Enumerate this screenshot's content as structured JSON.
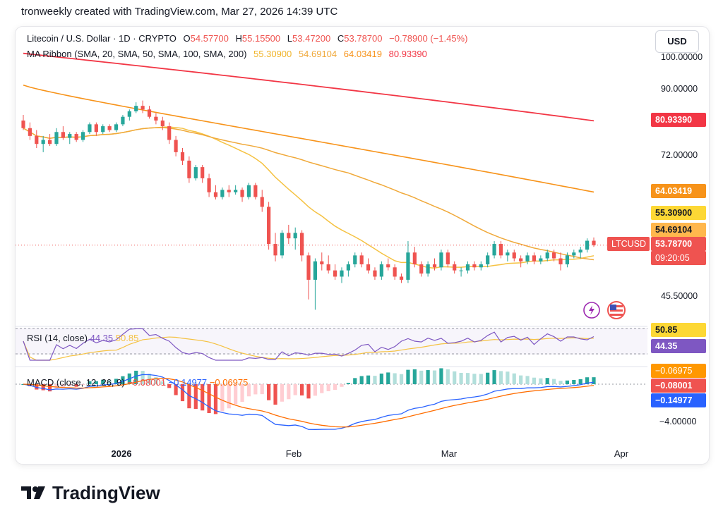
{
  "header": {
    "caption": "tronweekly created with TradingView.com, Mar 27, 2026 14:39 UTC"
  },
  "legend": {
    "symbol": "Litecoin / U.S. Dollar · 1D · CRYPTO",
    "open_label": "O",
    "open": "54.57700",
    "high_label": "H",
    "high": "55.15500",
    "low_label": "L",
    "low": "53.47200",
    "close_label": "C",
    "close": "53.78700",
    "change": "−0.78900 (−1.45%)",
    "ma_title": "MA Ribbon (SMA, 20, SMA, 50, SMA, 100, SMA, 200)",
    "ma20": "55.30900",
    "ma50": "54.69104",
    "ma100": "64.03419",
    "ma200": "80.93390"
  },
  "currency_button": "USD",
  "price_axis": {
    "ticks": [
      "100.00000",
      "90.00000",
      "72.00000",
      "45.50000"
    ]
  },
  "price_labels": {
    "ma200": "80.93390",
    "ma100": "64.03419",
    "ma20": "55.30900",
    "ma50": "54.69104",
    "symbol_tag": "LTCUSD",
    "last": "53.78700",
    "countdown": "09:20:05"
  },
  "rsi": {
    "title": "RSI (14, close)",
    "rsi_value": "44.35",
    "ma_value": "50.85",
    "label_ma": "50.85",
    "label_rsi": "44.35"
  },
  "macd": {
    "title": "MACD (close, 12, 26, 9)",
    "hist": "−0.08001",
    "macd": "−0.14977",
    "signal": "−0.06975",
    "label_signal": "−0.06975",
    "label_hist": "−0.08001",
    "label_macd": "−0.14977",
    "tick": "−4.00000"
  },
  "x_axis": {
    "ticks": [
      "2026",
      "Feb",
      "Mar",
      "Apr"
    ]
  },
  "footer": {
    "brand": "TradingView"
  },
  "colors": {
    "up": "#26a69a",
    "down": "#ef5350",
    "ma20": "#f5c242",
    "ma50": "#f0a93a",
    "ma100": "#f7931a",
    "ma200": "#f23645",
    "rsi": "#7e57c2",
    "macd": "#2962ff",
    "signal": "#ff6d00"
  },
  "chart_data": {
    "type": "candlestick",
    "title": "Litecoin / U.S. Dollar · 1D · CRYPTO",
    "x_range": [
      "2025-12-01",
      "2026-03-27"
    ],
    "y_axis": "log",
    "candles_ohlc": [
      [
        81,
        82.5,
        78.5,
        79
      ],
      [
        79,
        80.5,
        76,
        77
      ],
      [
        77,
        78.5,
        74,
        75
      ],
      [
        75,
        77,
        73,
        76
      ],
      [
        76,
        77.5,
        74.5,
        75
      ],
      [
        75,
        79,
        74.5,
        78
      ],
      [
        78,
        79.5,
        76,
        76.5
      ],
      [
        76.5,
        78,
        75,
        77.5
      ],
      [
        77.5,
        78,
        75.5,
        76
      ],
      [
        76,
        78.5,
        75.5,
        78
      ],
      [
        78,
        80.5,
        77.5,
        80
      ],
      [
        80,
        80.5,
        77,
        78
      ],
      [
        78,
        80,
        77.5,
        79.5
      ],
      [
        79.5,
        80,
        78,
        78.5
      ],
      [
        78.5,
        80.5,
        78,
        80
      ],
      [
        80,
        82.5,
        79.5,
        82
      ],
      [
        82,
        84,
        81,
        83.5
      ],
      [
        83.5,
        86,
        83,
        85
      ],
      [
        85,
        86.5,
        83,
        84
      ],
      [
        84,
        85,
        81.5,
        82
      ],
      [
        82,
        83,
        80,
        81
      ],
      [
        81,
        82,
        78.5,
        79.5
      ],
      [
        79.5,
        80.5,
        75,
        76
      ],
      [
        76,
        77,
        72,
        73
      ],
      [
        73,
        74,
        70,
        71
      ],
      [
        71,
        72,
        66,
        67
      ],
      [
        67,
        70,
        66.5,
        69.5
      ],
      [
        69.5,
        70,
        66,
        67
      ],
      [
        67,
        68,
        63,
        64
      ],
      [
        64,
        65.5,
        62.5,
        63
      ],
      [
        63,
        65,
        62.5,
        64.5
      ],
      [
        64.5,
        65.5,
        63,
        64
      ],
      [
        64,
        65.5,
        63.5,
        64.5
      ],
      [
        64.5,
        65,
        62,
        63
      ],
      [
        63,
        66,
        62.5,
        65.5
      ],
      [
        65.5,
        66,
        62.5,
        63
      ],
      [
        63,
        64.5,
        60,
        61
      ],
      [
        61,
        62,
        53,
        54
      ],
      [
        54,
        56,
        51,
        52
      ],
      [
        52,
        56.5,
        51.5,
        56
      ],
      [
        56,
        57.5,
        54,
        55
      ],
      [
        55,
        57,
        53,
        56
      ],
      [
        56,
        56.5,
        51,
        52
      ],
      [
        52,
        52.5,
        45,
        48
      ],
      [
        48,
        51.5,
        43.5,
        51
      ],
      [
        51,
        52.5,
        49.5,
        50.5
      ],
      [
        50.5,
        52,
        49,
        49.5
      ],
      [
        49.5,
        50.5,
        48,
        48.5
      ],
      [
        48.5,
        50,
        47.5,
        49.5
      ],
      [
        49.5,
        51,
        48.5,
        50.5
      ],
      [
        50.5,
        52.5,
        50,
        52
      ],
      [
        52,
        52.5,
        50,
        50.5
      ],
      [
        50.5,
        51.5,
        49,
        49.5
      ],
      [
        49.5,
        50,
        48,
        48.5
      ],
      [
        48.5,
        51,
        48,
        50.5
      ],
      [
        50.5,
        51.5,
        49.5,
        50
      ],
      [
        50,
        50.5,
        48,
        48.5
      ],
      [
        48.5,
        49,
        47.5,
        48
      ],
      [
        48,
        54.5,
        47.5,
        52.5
      ],
      [
        52.5,
        53.5,
        50,
        50.5
      ],
      [
        50.5,
        51,
        48.5,
        49
      ],
      [
        49,
        51,
        48.5,
        50.5
      ],
      [
        50.5,
        51.5,
        49.5,
        50
      ],
      [
        50,
        53,
        49.5,
        52.5
      ],
      [
        52.5,
        53,
        50,
        50.5
      ],
      [
        50.5,
        51,
        49,
        49.5
      ],
      [
        49.5,
        50,
        48.5,
        49.5
      ],
      [
        49.5,
        51,
        49,
        50.5
      ],
      [
        50.5,
        51,
        49.5,
        50
      ],
      [
        50,
        51,
        49.5,
        50.5
      ],
      [
        50.5,
        52.5,
        50,
        52
      ],
      [
        52,
        54.5,
        51.5,
        54
      ],
      [
        54,
        54.5,
        51.5,
        52
      ],
      [
        52,
        53,
        51,
        52.5
      ],
      [
        52.5,
        53,
        51,
        51.5
      ],
      [
        51.5,
        52,
        50,
        51
      ],
      [
        51,
        52.5,
        50.5,
        52
      ],
      [
        52,
        52.5,
        50.5,
        51
      ],
      [
        51,
        52,
        50.5,
        51.5
      ],
      [
        51.5,
        53,
        51,
        52.5
      ],
      [
        52.5,
        53,
        51,
        51.5
      ],
      [
        51.5,
        52.5,
        49.5,
        50.5
      ],
      [
        50.5,
        52.5,
        50,
        52
      ],
      [
        52,
        53,
        51.5,
        52.5
      ],
      [
        52.5,
        53.5,
        51.5,
        53
      ],
      [
        53,
        55,
        52.5,
        54.57
      ],
      [
        54.57,
        55.155,
        53.472,
        53.787
      ]
    ],
    "last_close": 53.787,
    "ma_series": [
      {
        "name": "SMA 20",
        "last": 55.309
      },
      {
        "name": "SMA 50",
        "last": 54.69104
      },
      {
        "name": "SMA 100",
        "last": 64.03419
      },
      {
        "name": "SMA 200",
        "last": 80.9339
      }
    ],
    "rsi": {
      "name": "RSI (14, close)",
      "last": 44.35,
      "ma_last": 50.85
    },
    "macd": {
      "name": "MACD (close, 12, 26, 9)",
      "hist_last": -0.08001,
      "macd_last": -0.14977,
      "signal_last": -0.06975
    }
  }
}
